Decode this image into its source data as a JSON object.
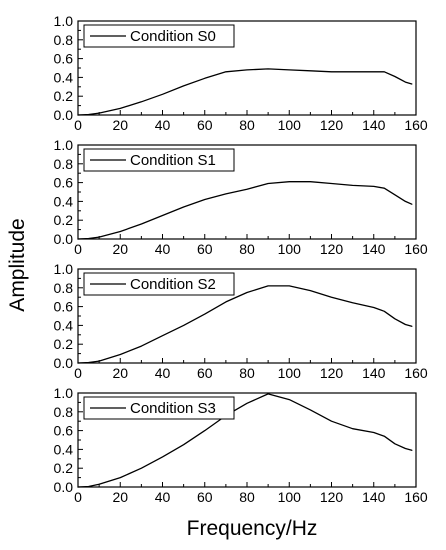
{
  "figure": {
    "xlabel": "Frequency/Hz",
    "ylabel": "Amplitude",
    "line_color": "#000000"
  },
  "chart_data": [
    {
      "type": "line",
      "legend": "top-left",
      "series": [
        {
          "name": "Condition S0",
          "x": [
            0,
            5,
            10,
            20,
            30,
            40,
            50,
            60,
            70,
            80,
            90,
            100,
            110,
            120,
            130,
            140,
            145,
            150,
            155,
            158
          ],
          "values": [
            0,
            0.005,
            0.02,
            0.07,
            0.14,
            0.22,
            0.31,
            0.39,
            0.46,
            0.48,
            0.49,
            0.48,
            0.47,
            0.46,
            0.46,
            0.46,
            0.46,
            0.41,
            0.35,
            0.33
          ]
        }
      ],
      "xlim": [
        0,
        160
      ],
      "ylim": [
        0,
        1.0
      ],
      "xticks": [
        0,
        20,
        40,
        60,
        80,
        100,
        120,
        140,
        160
      ],
      "yticks": [
        0.0,
        0.2,
        0.4,
        0.6,
        0.8,
        1.0
      ]
    },
    {
      "type": "line",
      "legend": "top-left",
      "series": [
        {
          "name": "Condition S1",
          "x": [
            0,
            5,
            10,
            20,
            30,
            40,
            50,
            60,
            70,
            80,
            90,
            100,
            110,
            120,
            130,
            140,
            145,
            150,
            155,
            158
          ],
          "values": [
            0,
            0.005,
            0.02,
            0.08,
            0.16,
            0.25,
            0.34,
            0.42,
            0.48,
            0.53,
            0.59,
            0.61,
            0.61,
            0.59,
            0.57,
            0.56,
            0.54,
            0.47,
            0.4,
            0.37
          ]
        }
      ],
      "xlim": [
        0,
        160
      ],
      "ylim": [
        0,
        1.0
      ],
      "xticks": [
        0,
        20,
        40,
        60,
        80,
        100,
        120,
        140,
        160
      ],
      "yticks": [
        0.0,
        0.2,
        0.4,
        0.6,
        0.8,
        1.0
      ]
    },
    {
      "type": "line",
      "legend": "top-left",
      "series": [
        {
          "name": "Condition S2",
          "x": [
            0,
            5,
            10,
            20,
            30,
            40,
            50,
            60,
            70,
            80,
            90,
            100,
            110,
            120,
            130,
            140,
            145,
            150,
            155,
            158
          ],
          "values": [
            0,
            0.005,
            0.02,
            0.09,
            0.18,
            0.29,
            0.4,
            0.52,
            0.65,
            0.75,
            0.82,
            0.82,
            0.77,
            0.7,
            0.64,
            0.59,
            0.55,
            0.47,
            0.41,
            0.39
          ]
        }
      ],
      "xlim": [
        0,
        160
      ],
      "ylim": [
        0,
        1.0
      ],
      "xticks": [
        0,
        20,
        40,
        60,
        80,
        100,
        120,
        140,
        160
      ],
      "yticks": [
        0.0,
        0.2,
        0.4,
        0.6,
        0.8,
        1.0
      ]
    },
    {
      "type": "line",
      "legend": "top-left",
      "series": [
        {
          "name": "Condition S3",
          "x": [
            0,
            5,
            10,
            20,
            30,
            40,
            50,
            60,
            70,
            80,
            90,
            100,
            110,
            120,
            130,
            140,
            145,
            150,
            155,
            158
          ],
          "values": [
            0,
            0.005,
            0.03,
            0.1,
            0.2,
            0.32,
            0.45,
            0.6,
            0.76,
            0.89,
            0.99,
            0.93,
            0.82,
            0.7,
            0.62,
            0.58,
            0.54,
            0.46,
            0.41,
            0.39
          ]
        }
      ],
      "xlim": [
        0,
        160
      ],
      "ylim": [
        0,
        1.0
      ],
      "xticks": [
        0,
        20,
        40,
        60,
        80,
        100,
        120,
        140,
        160
      ],
      "yticks": [
        0.0,
        0.2,
        0.4,
        0.6,
        0.8,
        1.0
      ]
    }
  ]
}
